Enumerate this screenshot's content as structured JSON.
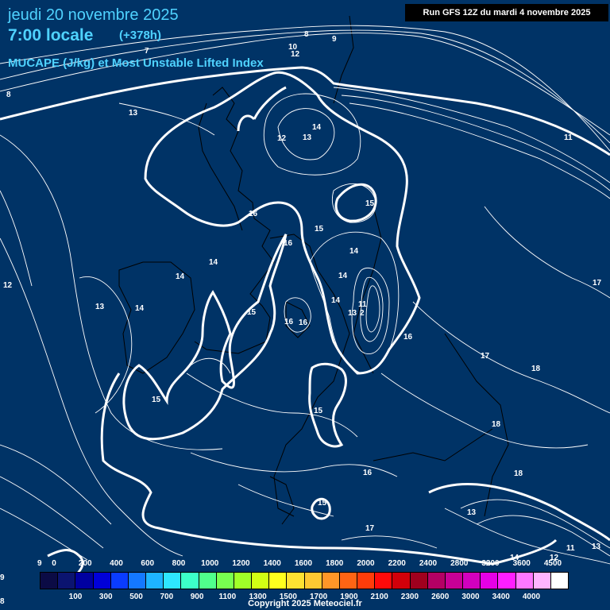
{
  "header": {
    "date": "jeudi 20 novembre 2025",
    "time": "7:00 locale",
    "lead": "(+378h)",
    "parameter": "MUCAPE (J/kg) et Most Unstable Lifted Index",
    "run": "Run GFS 12Z du mardi 4 novembre 2025"
  },
  "scale": {
    "colors": [
      "#0b0b45",
      "#0b1470",
      "#0000a0",
      "#0000d8",
      "#0a3cff",
      "#1478ff",
      "#1eb4ff",
      "#2ee6ff",
      "#3cffc8",
      "#50ff8c",
      "#78ff50",
      "#a0ff28",
      "#d2ff14",
      "#ffff1e",
      "#ffe132",
      "#ffc832",
      "#ff9628",
      "#ff6414",
      "#ff3c0a",
      "#ff0a0a",
      "#d2000a",
      "#a0001e",
      "#b40064",
      "#c80096",
      "#d200be",
      "#e600e6",
      "#ff1eff",
      "#ff78ff",
      "#ffb4ff",
      "#ffffff"
    ],
    "top_labels": [
      "0",
      "200",
      "400",
      "600",
      "800",
      "1000",
      "1200",
      "1400",
      "1600",
      "1800",
      "2000",
      "2200",
      "2400",
      "2800",
      "3200",
      "3600",
      "4500"
    ],
    "bottom_labels": [
      "100",
      "300",
      "500",
      "700",
      "900",
      "1100",
      "1300",
      "1500",
      "1700",
      "1900",
      "2100",
      "2300",
      "2600",
      "3000",
      "3400",
      "4000"
    ]
  },
  "contour_labels": [
    {
      "text": "8"
    },
    {
      "text": "9"
    },
    {
      "text": "10"
    },
    {
      "text": "12"
    },
    {
      "text": "7"
    },
    {
      "text": "8"
    },
    {
      "text": "13"
    },
    {
      "text": "14"
    },
    {
      "text": "12"
    },
    {
      "text": "13"
    },
    {
      "text": "11"
    },
    {
      "text": "15"
    },
    {
      "text": "16"
    },
    {
      "text": "15"
    },
    {
      "text": "16"
    },
    {
      "text": "14"
    },
    {
      "text": "14"
    },
    {
      "text": "14"
    },
    {
      "text": "14"
    },
    {
      "text": "12"
    },
    {
      "text": "13"
    },
    {
      "text": "14"
    },
    {
      "text": "17"
    },
    {
      "text": "11"
    },
    {
      "text": "14"
    },
    {
      "text": "15"
    },
    {
      "text": "13"
    },
    {
      "text": "2"
    },
    {
      "text": "16"
    },
    {
      "text": "16"
    },
    {
      "text": "16"
    },
    {
      "text": "17"
    },
    {
      "text": "18"
    },
    {
      "text": "15"
    },
    {
      "text": "15"
    },
    {
      "text": "18"
    },
    {
      "text": "16"
    },
    {
      "text": "18"
    },
    {
      "text": "15"
    },
    {
      "text": "13"
    },
    {
      "text": "17"
    },
    {
      "text": "14"
    },
    {
      "text": "12"
    },
    {
      "text": "11"
    },
    {
      "text": "13"
    },
    {
      "text": "9"
    },
    {
      "text": "9"
    },
    {
      "text": "8"
    }
  ],
  "copyright": "Copyright 2025 Meteociel.fr"
}
